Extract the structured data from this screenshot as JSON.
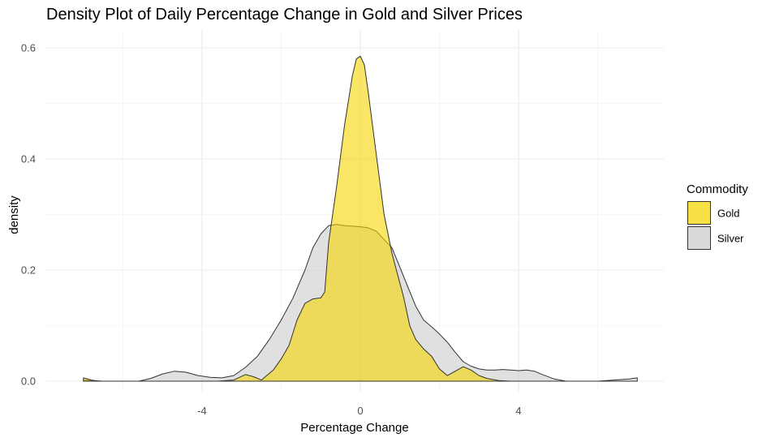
{
  "chart_data": {
    "type": "area",
    "title": "Density Plot of Daily Percentage Change in Gold and Silver Prices",
    "xlabel": "Percentage Change",
    "ylabel": "density",
    "xlim": [
      -7.0,
      7.0
    ],
    "ylim": [
      0,
      0.6
    ],
    "x_ticks": [
      -4,
      0,
      4
    ],
    "y_ticks": [
      0.0,
      0.2,
      0.4,
      0.6
    ],
    "x_tick_labels": [
      "-4",
      "0",
      "4"
    ],
    "y_tick_labels": [
      "0.0",
      "0.2",
      "0.4",
      "0.6"
    ],
    "grid": true,
    "legend": {
      "title": "Commodity",
      "placement": "right"
    },
    "series": [
      {
        "name": "Gold",
        "color": "#f5d400",
        "opacity": 0.6,
        "points": [
          [
            -7.0,
            0.006
          ],
          [
            -6.8,
            0.002
          ],
          [
            -6.6,
            0.0
          ],
          [
            -3.6,
            0.0
          ],
          [
            -3.2,
            0.002
          ],
          [
            -2.9,
            0.012
          ],
          [
            -2.7,
            0.008
          ],
          [
            -2.5,
            0.002
          ],
          [
            -2.2,
            0.02
          ],
          [
            -2.0,
            0.04
          ],
          [
            -1.8,
            0.065
          ],
          [
            -1.6,
            0.11
          ],
          [
            -1.4,
            0.14
          ],
          [
            -1.2,
            0.148
          ],
          [
            -1.0,
            0.15
          ],
          [
            -0.9,
            0.16
          ],
          [
            -0.8,
            0.25
          ],
          [
            -0.6,
            0.35
          ],
          [
            -0.4,
            0.46
          ],
          [
            -0.2,
            0.55
          ],
          [
            -0.1,
            0.58
          ],
          [
            0.0,
            0.585
          ],
          [
            0.1,
            0.57
          ],
          [
            0.2,
            0.52
          ],
          [
            0.4,
            0.41
          ],
          [
            0.6,
            0.3
          ],
          [
            0.8,
            0.23
          ],
          [
            0.95,
            0.19
          ],
          [
            1.1,
            0.15
          ],
          [
            1.25,
            0.1
          ],
          [
            1.4,
            0.075
          ],
          [
            1.6,
            0.058
          ],
          [
            1.8,
            0.045
          ],
          [
            2.0,
            0.022
          ],
          [
            2.2,
            0.01
          ],
          [
            2.4,
            0.018
          ],
          [
            2.6,
            0.026
          ],
          [
            2.8,
            0.02
          ],
          [
            3.0,
            0.01
          ],
          [
            3.2,
            0.005
          ],
          [
            3.5,
            0.001
          ],
          [
            3.8,
            0.0
          ],
          [
            7.0,
            0.0
          ]
        ]
      },
      {
        "name": "Silver",
        "color": "#cccccc",
        "opacity": 0.6,
        "points": [
          [
            -7.0,
            0.002
          ],
          [
            -6.8,
            0.001
          ],
          [
            -6.5,
            0.0
          ],
          [
            -6.0,
            0.0
          ],
          [
            -5.6,
            0.0
          ],
          [
            -5.3,
            0.005
          ],
          [
            -5.0,
            0.013
          ],
          [
            -4.7,
            0.018
          ],
          [
            -4.4,
            0.016
          ],
          [
            -4.1,
            0.01
          ],
          [
            -3.8,
            0.007
          ],
          [
            -3.5,
            0.006
          ],
          [
            -3.2,
            0.01
          ],
          [
            -2.9,
            0.025
          ],
          [
            -2.6,
            0.045
          ],
          [
            -2.3,
            0.075
          ],
          [
            -2.0,
            0.11
          ],
          [
            -1.7,
            0.15
          ],
          [
            -1.4,
            0.2
          ],
          [
            -1.2,
            0.24
          ],
          [
            -1.0,
            0.265
          ],
          [
            -0.8,
            0.28
          ],
          [
            -0.6,
            0.282
          ],
          [
            -0.4,
            0.28
          ],
          [
            -0.2,
            0.279
          ],
          [
            0.0,
            0.278
          ],
          [
            0.2,
            0.276
          ],
          [
            0.4,
            0.27
          ],
          [
            0.6,
            0.255
          ],
          [
            0.8,
            0.24
          ],
          [
            1.0,
            0.205
          ],
          [
            1.2,
            0.17
          ],
          [
            1.4,
            0.135
          ],
          [
            1.6,
            0.11
          ],
          [
            1.8,
            0.098
          ],
          [
            2.0,
            0.085
          ],
          [
            2.2,
            0.07
          ],
          [
            2.4,
            0.052
          ],
          [
            2.6,
            0.035
          ],
          [
            2.8,
            0.027
          ],
          [
            3.0,
            0.022
          ],
          [
            3.2,
            0.02
          ],
          [
            3.4,
            0.02
          ],
          [
            3.6,
            0.021
          ],
          [
            3.8,
            0.02
          ],
          [
            4.0,
            0.019
          ],
          [
            4.2,
            0.02
          ],
          [
            4.4,
            0.018
          ],
          [
            4.6,
            0.012
          ],
          [
            4.9,
            0.004
          ],
          [
            5.2,
            0.0
          ],
          [
            6.0,
            0.0
          ],
          [
            6.4,
            0.002
          ],
          [
            6.8,
            0.004
          ],
          [
            7.0,
            0.006
          ]
        ]
      }
    ]
  }
}
